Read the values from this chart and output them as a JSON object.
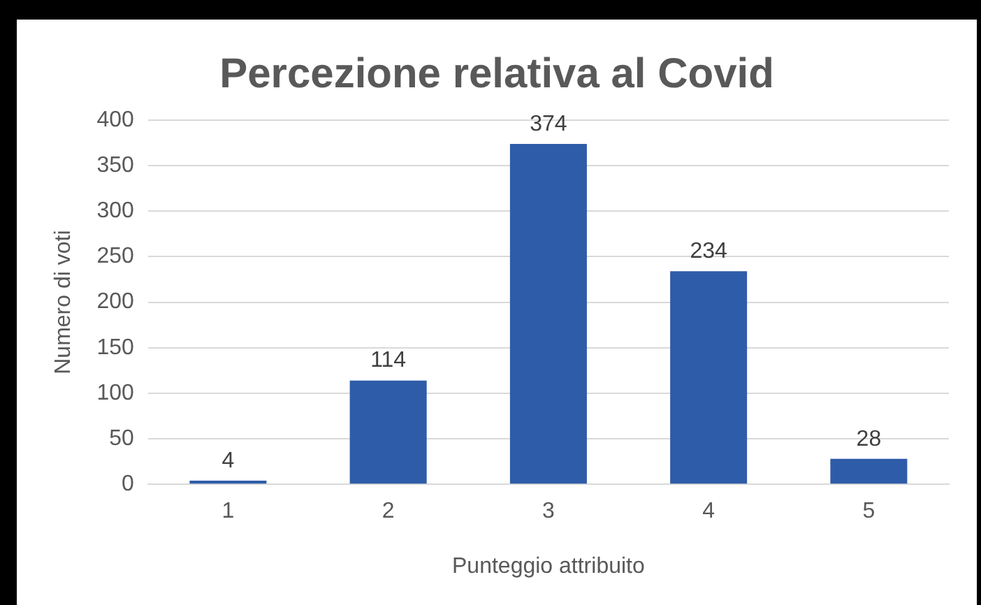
{
  "chart_data": {
    "type": "bar",
    "title": "Percezione relativa al Covid",
    "xlabel": "Punteggio attribuito",
    "ylabel": "Numero di voti",
    "categories": [
      "1",
      "2",
      "3",
      "4",
      "5"
    ],
    "values": [
      4,
      114,
      374,
      234,
      28
    ],
    "color": "#2f5ca8",
    "ylim": [
      0,
      400
    ],
    "yticks": [
      0,
      50,
      100,
      150,
      200,
      250,
      300,
      350,
      400
    ],
    "grid": "y",
    "legend": false,
    "data_labels": true
  }
}
